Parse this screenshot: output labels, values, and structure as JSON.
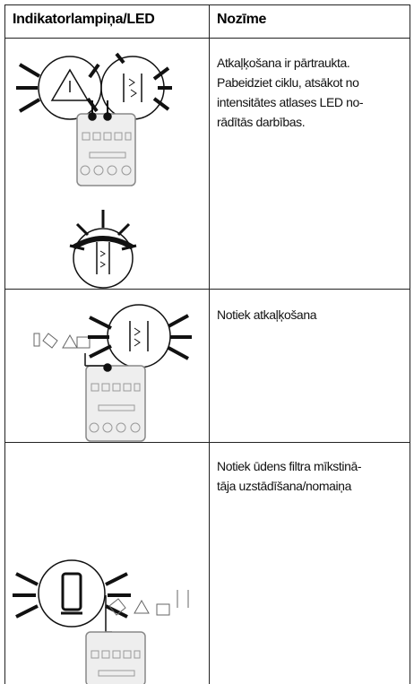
{
  "table": {
    "header": [
      "Indikatorlampiņa/LED",
      "Nozīme"
    ],
    "rows": [
      {
        "lines": [
          "Atkaļķošana ir pārtraukta.",
          "Pabeidziet ciklu, atsākot no",
          "intensitātes atlases LED no-",
          "rādītās darbības."
        ]
      },
      {
        "lines": [
          "Notiek atkaļķošana"
        ]
      },
      {
        "lines": [
          "Notiek ūdens filtra mīkstinā-",
          "tāja uzstādīšana/nomaiņa"
        ]
      }
    ]
  }
}
